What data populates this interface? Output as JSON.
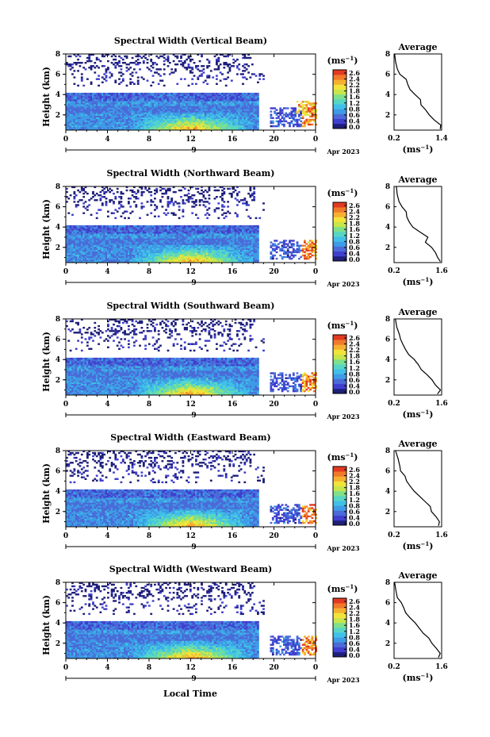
{
  "figure": {
    "xlabel": "Local Time",
    "date_label": "Apr 2023",
    "day_label": "9",
    "ylabel": "Height (km)",
    "colorbar_unit": "(ms",
    "colorbar_unit_sup": "−1",
    "colorbar_unit_close": ")",
    "avg_title": "Average",
    "avg_xunit": "(ms",
    "avg_xunit_sup": "−1",
    "avg_xunit_close": ")"
  },
  "colorbar_ticks": [
    "2.6",
    "2.4",
    "2.2",
    "1.8",
    "1.6",
    "1.2",
    "0.8",
    "0.6",
    "0.4",
    "0.0"
  ],
  "colorscale": [
    "#1f1f7a",
    "#3f3fcf",
    "#4a6bd8",
    "#3e9be6",
    "#40c0e8",
    "#58d6c4",
    "#7fe08c",
    "#c8e64b",
    "#f2e43a",
    "#f6b030",
    "#f07a2a",
    "#e23a22"
  ],
  "chart_data": [
    {
      "type": "heatmap",
      "title": "Spectral Width (Vertical Beam)",
      "x_ticks": [
        "0",
        "4",
        "8",
        "12",
        "16",
        "20",
        "0"
      ],
      "y_ticks": [
        "2",
        "4",
        "6",
        "8"
      ],
      "avg_x_ticks": [
        "0.2",
        "1.4"
      ],
      "avg_y_ticks": [
        "2",
        "4",
        "6",
        "8"
      ],
      "xlim": [
        0,
        24
      ],
      "ylim": [
        0.5,
        8
      ],
      "avg_xlim": [
        0.2,
        1.4
      ],
      "avg_profile": {
        "height": [
          8,
          7.2,
          6.5,
          6.0,
          5.5,
          5.0,
          4.5,
          4.0,
          3.5,
          3.0,
          2.5,
          2.0,
          1.5,
          1.0,
          0.6
        ],
        "value": [
          0.2,
          0.25,
          0.3,
          0.35,
          0.5,
          0.55,
          0.6,
          0.75,
          0.85,
          0.9,
          1.0,
          1.1,
          1.2,
          1.4,
          1.35
        ]
      }
    },
    {
      "type": "heatmap",
      "title": "Spectral Width (Northward Beam)",
      "x_ticks": [
        "0",
        "4",
        "8",
        "12",
        "16",
        "20",
        "0"
      ],
      "y_ticks": [
        "2",
        "4",
        "6",
        "8"
      ],
      "avg_x_ticks": [
        "0.2",
        "1.6"
      ],
      "avg_y_ticks": [
        "2",
        "4",
        "6",
        "8"
      ],
      "xlim": [
        0,
        24
      ],
      "ylim": [
        0.5,
        8
      ],
      "avg_xlim": [
        0.2,
        1.6
      ],
      "avg_profile": {
        "height": [
          8,
          7.2,
          6.5,
          6.0,
          5.5,
          5.0,
          4.5,
          4.0,
          3.5,
          3.0,
          2.5,
          2.0,
          1.5,
          1.0,
          0.6
        ],
        "value": [
          0.25,
          0.3,
          0.35,
          0.45,
          0.55,
          0.6,
          0.65,
          0.75,
          0.95,
          1.2,
          1.1,
          1.3,
          1.4,
          1.5,
          1.55
        ]
      }
    },
    {
      "type": "heatmap",
      "title": "Spectral Width (Southward Beam)",
      "x_ticks": [
        "0",
        "4",
        "8",
        "12",
        "16",
        "20",
        "0"
      ],
      "y_ticks": [
        "2",
        "4",
        "6",
        "8"
      ],
      "avg_x_ticks": [
        "0.2",
        "1.6"
      ],
      "avg_y_ticks": [
        "2",
        "4",
        "6",
        "8"
      ],
      "xlim": [
        0,
        24
      ],
      "ylim": [
        0.5,
        8
      ],
      "avg_xlim": [
        0.2,
        1.6
      ],
      "avg_profile": {
        "height": [
          8,
          7.2,
          6.5,
          6.0,
          5.5,
          5.0,
          4.5,
          4.0,
          3.5,
          3.0,
          2.5,
          2.0,
          1.5,
          1.0,
          0.6
        ],
        "value": [
          0.25,
          0.3,
          0.35,
          0.4,
          0.45,
          0.55,
          0.65,
          0.8,
          0.9,
          1.0,
          1.15,
          1.3,
          1.4,
          1.55,
          1.5
        ]
      }
    },
    {
      "type": "heatmap",
      "title": "Spectral Width (Eastward Beam)",
      "x_ticks": [
        "0",
        "4",
        "8",
        "12",
        "16",
        "20",
        "0"
      ],
      "y_ticks": [
        "2",
        "4",
        "6",
        "8"
      ],
      "avg_x_ticks": [
        "0.2",
        "1.6"
      ],
      "avg_y_ticks": [
        "2",
        "4",
        "6",
        "8"
      ],
      "xlim": [
        0,
        24
      ],
      "ylim": [
        0.5,
        8
      ],
      "avg_xlim": [
        0.2,
        1.6
      ],
      "avg_profile": {
        "height": [
          8,
          7.2,
          6.5,
          6.0,
          5.5,
          5.0,
          4.5,
          4.0,
          3.5,
          3.0,
          2.5,
          2.0,
          1.5,
          1.0,
          0.6
        ],
        "value": [
          0.25,
          0.3,
          0.35,
          0.4,
          0.5,
          0.55,
          0.65,
          0.8,
          0.95,
          1.1,
          1.25,
          1.3,
          1.45,
          1.55,
          1.5
        ]
      }
    },
    {
      "type": "heatmap",
      "title": "Spectral Width (Westward Beam)",
      "x_ticks": [
        "0",
        "4",
        "8",
        "12",
        "16",
        "20",
        "0"
      ],
      "y_ticks": [
        "2",
        "4",
        "6",
        "8"
      ],
      "avg_x_ticks": [
        "0.2",
        "1.6"
      ],
      "avg_y_ticks": [
        "2",
        "4",
        "6",
        "8"
      ],
      "xlim": [
        0,
        24
      ],
      "ylim": [
        0.5,
        8
      ],
      "avg_xlim": [
        0.2,
        1.6
      ],
      "avg_profile": {
        "height": [
          8,
          7.2,
          6.5,
          6.0,
          5.5,
          5.0,
          4.5,
          4.0,
          3.5,
          3.0,
          2.5,
          2.0,
          1.5,
          1.0,
          0.6
        ],
        "value": [
          0.2,
          0.25,
          0.3,
          0.4,
          0.5,
          0.55,
          0.65,
          0.8,
          0.95,
          1.05,
          1.2,
          1.3,
          1.45,
          1.55,
          1.5
        ]
      }
    }
  ]
}
